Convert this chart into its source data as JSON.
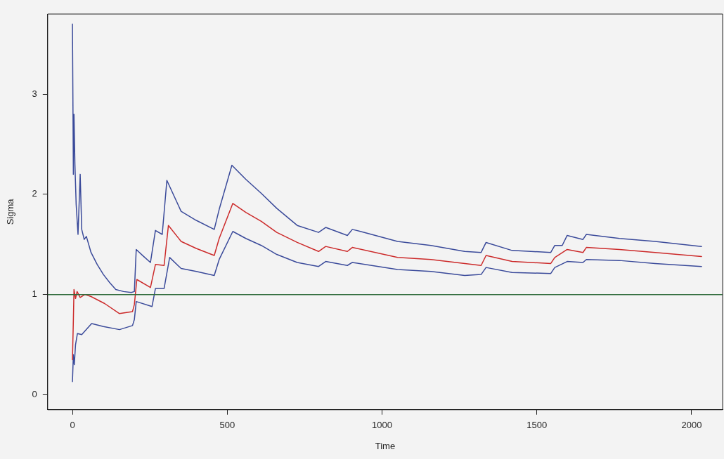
{
  "chart_data": {
    "type": "line",
    "xlabel": "Time",
    "ylabel": "Sigma",
    "xlim": [
      -80,
      2100
    ],
    "ylim": [
      -0.15,
      3.8
    ],
    "xticks": [
      0,
      500,
      1000,
      1500,
      2000
    ],
    "yticks": [
      0,
      1,
      2,
      3
    ],
    "grid": false,
    "legend": false,
    "marker": "none",
    "line_style": "solid",
    "ref_lines": [
      {
        "axis": "y",
        "value": 1,
        "color": "#2f6b3a"
      }
    ],
    "series": [
      {
        "color": "#3a4a9a",
        "x": [
          0,
          3,
          5,
          8,
          12,
          18,
          25,
          30,
          38,
          45,
          60,
          80,
          100,
          120,
          140,
          165,
          190,
          200,
          206,
          230,
          252,
          268,
          290,
          305,
          351,
          400,
          458,
          474,
          515,
          560,
          610,
          660,
          726,
          795,
          818,
          888,
          904,
          943,
          1050,
          1158,
          1267,
          1320,
          1336,
          1420,
          1545,
          1558,
          1582,
          1598,
          1649,
          1660,
          1767,
          1882,
          2032
        ],
        "values": [
          3.7,
          2.2,
          2.8,
          2.3,
          1.9,
          1.6,
          2.2,
          1.65,
          1.55,
          1.58,
          1.42,
          1.3,
          1.2,
          1.12,
          1.05,
          1.03,
          1.02,
          1.03,
          1.45,
          1.38,
          1.32,
          1.64,
          1.6,
          2.14,
          1.83,
          1.74,
          1.65,
          1.85,
          2.29,
          2.15,
          2.01,
          1.86,
          1.69,
          1.62,
          1.67,
          1.59,
          1.65,
          1.62,
          1.53,
          1.49,
          1.43,
          1.42,
          1.52,
          1.44,
          1.42,
          1.49,
          1.49,
          1.59,
          1.55,
          1.6,
          1.56,
          1.53,
          1.48
        ]
      },
      {
        "color": "#cc2a2a",
        "x": [
          0,
          3,
          5,
          10,
          15,
          25,
          40,
          60,
          104,
          152,
          194,
          200,
          208,
          252,
          268,
          296,
          310,
          351,
          400,
          458,
          474,
          518,
          560,
          610,
          660,
          726,
          795,
          818,
          888,
          904,
          1050,
          1158,
          1320,
          1336,
          1420,
          1545,
          1558,
          1598,
          1649,
          1660,
          1767,
          1882,
          2032
        ],
        "values": [
          0.35,
          0.75,
          1.05,
          0.96,
          1.03,
          0.97,
          1.0,
          0.98,
          0.91,
          0.81,
          0.83,
          0.9,
          1.15,
          1.07,
          1.3,
          1.29,
          1.69,
          1.53,
          1.46,
          1.39,
          1.56,
          1.91,
          1.82,
          1.73,
          1.62,
          1.52,
          1.43,
          1.48,
          1.43,
          1.47,
          1.37,
          1.35,
          1.29,
          1.39,
          1.33,
          1.31,
          1.37,
          1.45,
          1.42,
          1.47,
          1.45,
          1.42,
          1.38
        ]
      },
      {
        "color": "#3a4a9a",
        "x": [
          0,
          3,
          6,
          10,
          16,
          30,
          62,
          100,
          152,
          194,
          200,
          206,
          257,
          268,
          296,
          314,
          351,
          400,
          458,
          474,
          518,
          560,
          610,
          660,
          726,
          795,
          818,
          888,
          904,
          1050,
          1158,
          1267,
          1320,
          1336,
          1420,
          1545,
          1558,
          1598,
          1649,
          1660,
          1767,
          1882,
          2032
        ],
        "values": [
          0.13,
          0.4,
          0.3,
          0.5,
          0.61,
          0.6,
          0.71,
          0.68,
          0.65,
          0.69,
          0.75,
          0.93,
          0.88,
          1.06,
          1.06,
          1.37,
          1.26,
          1.23,
          1.19,
          1.35,
          1.63,
          1.56,
          1.49,
          1.4,
          1.32,
          1.28,
          1.33,
          1.29,
          1.32,
          1.25,
          1.23,
          1.19,
          1.2,
          1.27,
          1.22,
          1.21,
          1.27,
          1.33,
          1.32,
          1.35,
          1.34,
          1.31,
          1.28
        ]
      }
    ]
  }
}
